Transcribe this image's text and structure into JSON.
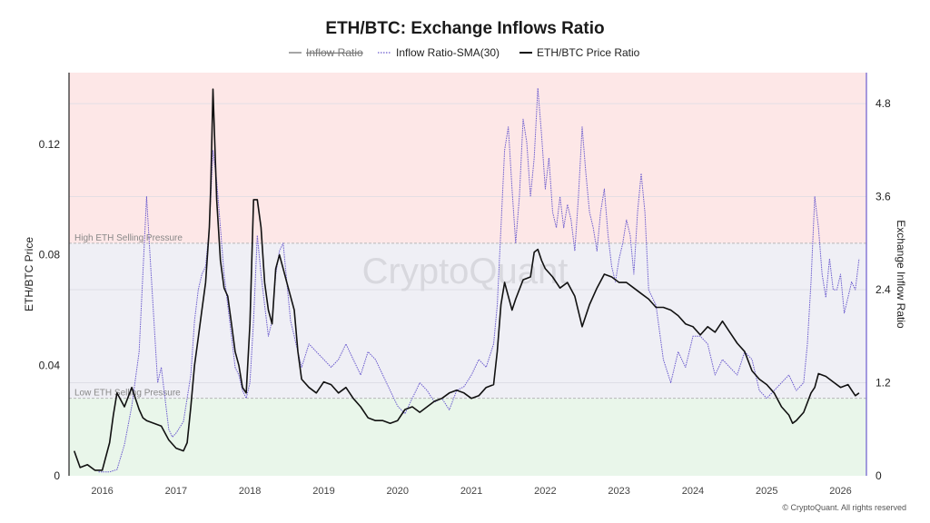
{
  "chart_data": {
    "type": "line",
    "title": "ETH/BTC: Exchange Inflows Ratio",
    "ylabel_left": "ETH/BTC Price",
    "ylabel_right": "Exchange Inflow Ratio",
    "ylim_left": [
      0,
      0.146
    ],
    "ylim_right": [
      0,
      5.2
    ],
    "xlim": [
      2015.55,
      2026.35
    ],
    "yticks_left": [
      "0",
      "0.04",
      "0.08",
      "0.12"
    ],
    "yticks_left_values": [
      0,
      0.04,
      0.08,
      0.12
    ],
    "yticks_right": [
      "0",
      "1.2",
      "2.4",
      "3.6",
      "4.8"
    ],
    "yticks_right_values": [
      0,
      1.2,
      2.4,
      3.6,
      4.8
    ],
    "xticks": [
      "2016",
      "2017",
      "2018",
      "2019",
      "2020",
      "2021",
      "2022",
      "2023",
      "2024",
      "2025",
      "2026"
    ],
    "xticks_values": [
      2016,
      2017,
      2018,
      2019,
      2020,
      2021,
      2022,
      2023,
      2024,
      2025,
      2026
    ],
    "legend": [
      {
        "label": "Inflow Ratio",
        "style": "strikethrough",
        "color": "#888888"
      },
      {
        "label": "Inflow Ratio-SMA(30)",
        "style": "dotted",
        "color": "#6a5acd"
      },
      {
        "label": "ETH/BTC Price Ratio",
        "style": "solid",
        "color": "#111111"
      }
    ],
    "legend_position": "top-center",
    "zones": [
      {
        "label": "High ETH Selling Pressure",
        "from": 3.0,
        "to": 5.2,
        "color": "#fde7e7",
        "axis": "right"
      },
      {
        "label": "",
        "from": 1.0,
        "to": 3.0,
        "color": "#efeff5",
        "axis": "right"
      },
      {
        "label": "Low ETH Selling Pressure",
        "from": 0,
        "to": 1.0,
        "color": "#e9f6ea",
        "axis": "right"
      }
    ],
    "series": [
      {
        "name": "Inflow Ratio-SMA(30)",
        "axis": "right",
        "color": "#6a5acd",
        "x": [
          2015.95,
          2016.1,
          2016.2,
          2016.3,
          2016.4,
          2016.5,
          2016.55,
          2016.6,
          2016.65,
          2016.7,
          2016.75,
          2016.8,
          2016.85,
          2016.9,
          2016.95,
          2017.0,
          2017.1,
          2017.2,
          2017.25,
          2017.3,
          2017.35,
          2017.4,
          2017.45,
          2017.5,
          2017.55,
          2017.6,
          2017.65,
          2017.7,
          2017.75,
          2017.8,
          2017.85,
          2017.9,
          2017.95,
          2018.0,
          2018.05,
          2018.1,
          2018.15,
          2018.2,
          2018.25,
          2018.3,
          2018.35,
          2018.4,
          2018.45,
          2018.5,
          2018.55,
          2018.6,
          2018.65,
          2018.7,
          2018.8,
          2018.9,
          2019.0,
          2019.1,
          2019.2,
          2019.3,
          2019.4,
          2019.45,
          2019.5,
          2019.6,
          2019.7,
          2019.8,
          2019.9,
          2020.0,
          2020.1,
          2020.2,
          2020.3,
          2020.4,
          2020.5,
          2020.6,
          2020.7,
          2020.8,
          2020.9,
          2021.0,
          2021.1,
          2021.2,
          2021.3,
          2021.35,
          2021.4,
          2021.45,
          2021.5,
          2021.55,
          2021.6,
          2021.65,
          2021.7,
          2021.75,
          2021.8,
          2021.85,
          2021.9,
          2021.95,
          2022.0,
          2022.05,
          2022.1,
          2022.15,
          2022.2,
          2022.25,
          2022.3,
          2022.35,
          2022.4,
          2022.45,
          2022.5,
          2022.55,
          2022.6,
          2022.65,
          2022.7,
          2022.75,
          2022.8,
          2022.85,
          2022.9,
          2022.95,
          2023.0,
          2023.05,
          2023.1,
          2023.15,
          2023.2,
          2023.25,
          2023.3,
          2023.35,
          2023.4,
          2023.5,
          2023.6,
          2023.7,
          2023.8,
          2023.9,
          2024.0,
          2024.1,
          2024.2,
          2024.3,
          2024.4,
          2024.5,
          2024.6,
          2024.7,
          2024.8,
          2024.9,
          2025.0,
          2025.1,
          2025.2,
          2025.3,
          2025.4,
          2025.5,
          2025.55,
          2025.6,
          2025.65,
          2025.7,
          2025.75,
          2025.8,
          2025.85,
          2025.9,
          2025.95,
          2026.0,
          2026.05,
          2026.1,
          2026.15,
          2026.2,
          2026.25
        ],
        "y": [
          0.05,
          0.05,
          0.08,
          0.4,
          0.9,
          1.6,
          2.6,
          3.6,
          2.8,
          2.0,
          1.2,
          1.4,
          1.0,
          0.6,
          0.5,
          0.55,
          0.7,
          1.3,
          2.0,
          2.4,
          2.6,
          2.7,
          3.2,
          4.2,
          3.8,
          3.2,
          2.6,
          2.2,
          1.8,
          1.4,
          1.3,
          1.1,
          1.0,
          1.2,
          2.0,
          3.1,
          2.6,
          2.2,
          1.8,
          2.0,
          2.6,
          2.9,
          3.0,
          2.5,
          2.0,
          1.8,
          1.6,
          1.4,
          1.7,
          1.6,
          1.5,
          1.4,
          1.5,
          1.7,
          1.5,
          1.4,
          1.3,
          1.6,
          1.5,
          1.3,
          1.1,
          0.9,
          0.8,
          1.0,
          1.2,
          1.1,
          0.95,
          1.0,
          0.85,
          1.1,
          1.15,
          1.3,
          1.5,
          1.4,
          1.7,
          2.2,
          3.2,
          4.2,
          4.5,
          3.7,
          3.0,
          3.6,
          4.6,
          4.3,
          3.6,
          4.1,
          5.0,
          4.4,
          3.7,
          4.1,
          3.4,
          3.2,
          3.6,
          3.2,
          3.5,
          3.3,
          2.9,
          3.6,
          4.5,
          3.9,
          3.4,
          3.2,
          2.9,
          3.4,
          3.7,
          3.1,
          2.7,
          2.5,
          2.8,
          3.0,
          3.3,
          3.1,
          2.6,
          3.4,
          3.9,
          3.4,
          2.4,
          2.2,
          1.5,
          1.2,
          1.6,
          1.4,
          1.8,
          1.8,
          1.7,
          1.3,
          1.5,
          1.4,
          1.3,
          1.6,
          1.5,
          1.1,
          1.0,
          1.1,
          1.2,
          1.3,
          1.1,
          1.2,
          1.7,
          2.5,
          3.6,
          3.2,
          2.6,
          2.3,
          2.8,
          2.4,
          2.4,
          2.6,
          2.1,
          2.3,
          2.5,
          2.4,
          2.8
        ]
      },
      {
        "name": "ETH/BTC Price Ratio",
        "axis": "left",
        "color": "#111111",
        "x": [
          2015.62,
          2015.7,
          2015.8,
          2015.9,
          2016.0,
          2016.1,
          2016.15,
          2016.2,
          2016.3,
          2016.4,
          2016.5,
          2016.55,
          2016.6,
          2016.7,
          2016.8,
          2016.9,
          2017.0,
          2017.1,
          2017.15,
          2017.2,
          2017.25,
          2017.3,
          2017.35,
          2017.4,
          2017.45,
          2017.47,
          2017.5,
          2017.55,
          2017.6,
          2017.65,
          2017.7,
          2017.75,
          2017.8,
          2017.85,
          2017.9,
          2017.95,
          2018.0,
          2018.05,
          2018.1,
          2018.15,
          2018.2,
          2018.25,
          2018.3,
          2018.35,
          2018.4,
          2018.45,
          2018.5,
          2018.55,
          2018.6,
          2018.65,
          2018.7,
          2018.8,
          2018.9,
          2019.0,
          2019.1,
          2019.2,
          2019.3,
          2019.4,
          2019.5,
          2019.6,
          2019.7,
          2019.8,
          2019.9,
          2020.0,
          2020.1,
          2020.2,
          2020.3,
          2020.4,
          2020.5,
          2020.6,
          2020.7,
          2020.8,
          2020.9,
          2021.0,
          2021.1,
          2021.2,
          2021.3,
          2021.35,
          2021.4,
          2021.45,
          2021.5,
          2021.55,
          2021.6,
          2021.7,
          2021.8,
          2021.85,
          2021.9,
          2021.95,
          2022.0,
          2022.1,
          2022.2,
          2022.3,
          2022.4,
          2022.5,
          2022.6,
          2022.7,
          2022.8,
          2022.9,
          2023.0,
          2023.1,
          2023.2,
          2023.3,
          2023.4,
          2023.5,
          2023.6,
          2023.7,
          2023.8,
          2023.9,
          2024.0,
          2024.1,
          2024.2,
          2024.3,
          2024.4,
          2024.5,
          2024.6,
          2024.7,
          2024.8,
          2024.9,
          2025.0,
          2025.1,
          2025.2,
          2025.3,
          2025.35,
          2025.4,
          2025.5,
          2025.6,
          2025.65,
          2025.7,
          2025.8,
          2025.9,
          2026.0,
          2026.1,
          2026.15,
          2026.2,
          2026.25
        ],
        "y": [
          0.009,
          0.003,
          0.004,
          0.002,
          0.002,
          0.012,
          0.022,
          0.03,
          0.025,
          0.032,
          0.024,
          0.021,
          0.02,
          0.019,
          0.018,
          0.013,
          0.01,
          0.009,
          0.012,
          0.025,
          0.04,
          0.05,
          0.06,
          0.07,
          0.09,
          0.105,
          0.14,
          0.1,
          0.078,
          0.068,
          0.065,
          0.055,
          0.045,
          0.04,
          0.032,
          0.03,
          0.055,
          0.1,
          0.1,
          0.09,
          0.07,
          0.06,
          0.055,
          0.075,
          0.08,
          0.075,
          0.07,
          0.065,
          0.06,
          0.045,
          0.035,
          0.032,
          0.03,
          0.034,
          0.033,
          0.03,
          0.032,
          0.028,
          0.025,
          0.021,
          0.02,
          0.02,
          0.019,
          0.02,
          0.024,
          0.025,
          0.023,
          0.025,
          0.027,
          0.028,
          0.03,
          0.031,
          0.03,
          0.028,
          0.029,
          0.032,
          0.033,
          0.045,
          0.062,
          0.07,
          0.065,
          0.06,
          0.064,
          0.071,
          0.072,
          0.081,
          0.082,
          0.078,
          0.075,
          0.072,
          0.068,
          0.07,
          0.065,
          0.054,
          0.062,
          0.068,
          0.073,
          0.072,
          0.07,
          0.07,
          0.068,
          0.066,
          0.064,
          0.061,
          0.061,
          0.06,
          0.058,
          0.055,
          0.054,
          0.051,
          0.054,
          0.052,
          0.056,
          0.052,
          0.048,
          0.045,
          0.038,
          0.035,
          0.033,
          0.03,
          0.025,
          0.022,
          0.019,
          0.02,
          0.023,
          0.03,
          0.032,
          0.037,
          0.036,
          0.034,
          0.032,
          0.033,
          0.031,
          0.029,
          0.03
        ]
      }
    ],
    "watermark": "CryptoQuant",
    "copyright": "© CryptoQuant. All rights reserved"
  }
}
